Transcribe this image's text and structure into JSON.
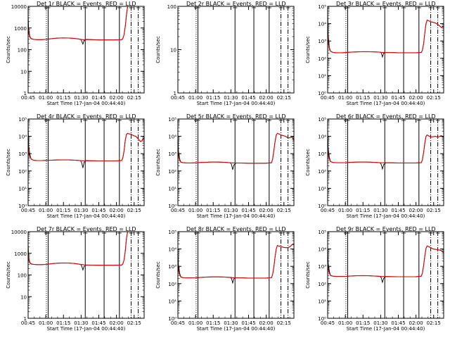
{
  "chart_data": {
    "type": "line",
    "layout": "3x3 grid of small multiples",
    "colors": {
      "events": "#000000",
      "lld": "#e00000",
      "axes": "#000000",
      "background": "#ffffff"
    },
    "xlabel": "Start Time (17-Jan-04 00:44:40)",
    "ylabel": "Counts/sec",
    "x_ticks": [
      "00:45",
      "01:00",
      "01:15",
      "01:30",
      "01:45",
      "02:00",
      "02:15"
    ],
    "x_range_minutes": [
      0.5,
      99
    ],
    "vertical_lines_minutes": [
      {
        "x": 16,
        "style": "dotted"
      },
      {
        "x": 17.5,
        "style": "solid"
      },
      {
        "x": 49,
        "style": "solid"
      },
      {
        "x": 65,
        "style": "solid"
      },
      {
        "x": 78,
        "style": "solid"
      },
      {
        "x": 88,
        "style": "dash-dot"
      },
      {
        "x": 94,
        "style": "dash-dot"
      }
    ],
    "time_minutes": [
      0.5,
      1,
      2,
      3,
      5,
      8,
      12,
      16,
      20,
      25,
      30,
      35,
      40,
      45,
      46,
      47,
      48,
      50,
      55,
      60,
      65,
      70,
      75,
      80,
      81,
      82,
      83,
      84,
      85,
      86,
      88,
      90,
      92,
      94,
      96,
      97,
      98,
      99
    ],
    "panels": [
      {
        "title": "Det 1r BLACK = Events, RED = LLD",
        "y_scale": "log",
        "ylim": [
          1,
          10000
        ],
        "y_ticks": [
          "1",
          "10",
          "100",
          "1000",
          "10000"
        ],
        "series": [
          {
            "name": "Events",
            "values": [
              4000,
              800,
              400,
              330,
              300,
              290,
              290,
              300,
              320,
              340,
              350,
              345,
              330,
              300,
              250,
              180,
              260,
              300,
              290,
              280,
              280,
              280,
              280,
              290,
              330,
              500,
              1200,
              4000,
              10000,
              10000,
              10000,
              10000,
              10000,
              10000,
              10000,
              10000,
              10000,
              10000
            ]
          },
          {
            "name": "LLD",
            "values": [
              1200,
              600,
              380,
              320,
              300,
              290,
              290,
              300,
              320,
              340,
              350,
              345,
              330,
              300,
              295,
              290,
              290,
              290,
              290,
              280,
              280,
              280,
              280,
              290,
              330,
              500,
              1200,
              4000,
              10000,
              10000,
              10000,
              10000,
              10000,
              10000,
              10000,
              10000,
              10000,
              10000
            ]
          }
        ]
      },
      {
        "title": "Det 2r BLACK = Events, RED = LLD",
        "y_scale": "log",
        "ylim": [
          1,
          100
        ],
        "y_ticks": [
          "1",
          "10",
          "100"
        ],
        "series": [
          {
            "name": "Events",
            "values": []
          },
          {
            "name": "LLD",
            "values": []
          }
        ]
      },
      {
        "title": "Det 3r BLACK = Events, RED = LLD",
        "y_scale": "log",
        "ylim": [
          1,
          100000
        ],
        "y_ticks": [
          "10⁰",
          "10¹",
          "10²",
          "10³",
          "10⁴",
          "10⁵"
        ],
        "series": [
          {
            "name": "Events",
            "values": [
              60000,
              2000,
              400,
              260,
              220,
              210,
              210,
              215,
              225,
              235,
              240,
              240,
              235,
              225,
              210,
              120,
              200,
              220,
              215,
              210,
              210,
              210,
              210,
              220,
              300,
              700,
              3000,
              10000,
              16000,
              15000,
              13000,
              12000,
              11000,
              9000,
              7000,
              6000,
              6500,
              7000
            ]
          },
          {
            "name": "LLD",
            "values": [
              2500,
              900,
              350,
              250,
              220,
              210,
              210,
              215,
              225,
              235,
              240,
              240,
              235,
              225,
              220,
              215,
              215,
              215,
              215,
              210,
              210,
              210,
              210,
              220,
              300,
              700,
              3000,
              10000,
              16000,
              15000,
              13000,
              12000,
              11000,
              9000,
              7000,
              6000,
              6500,
              7000
            ]
          }
        ]
      },
      {
        "title": "Det 4r BLACK = Events, RED = LLD",
        "y_scale": "log",
        "ylim": [
          1,
          100000
        ],
        "y_ticks": [
          "10⁰",
          "10¹",
          "10²",
          "10³",
          "10⁴",
          "10⁵"
        ],
        "series": [
          {
            "name": "Events",
            "values": [
              50000,
              3000,
              900,
              500,
              420,
              400,
              400,
              410,
              420,
              430,
              440,
              435,
              420,
              400,
              300,
              150,
              320,
              400,
              390,
              380,
              380,
              380,
              380,
              400,
              600,
              1500,
              6000,
              13000,
              15000,
              14000,
              13000,
              11000,
              10000,
              7000,
              5000,
              5500,
              7000,
              8000
            ]
          },
          {
            "name": "LLD",
            "values": [
              3000,
              1200,
              700,
              480,
              420,
              400,
              400,
              410,
              420,
              430,
              440,
              435,
              420,
              400,
              395,
              390,
              390,
              390,
              390,
              380,
              380,
              380,
              380,
              400,
              600,
              1500,
              6000,
              13000,
              15000,
              14000,
              13000,
              11000,
              10000,
              7000,
              5000,
              5500,
              7000,
              8000
            ]
          }
        ]
      },
      {
        "title": "Det 5r BLACK = Events, RED = LLD",
        "y_scale": "log",
        "ylim": [
          1,
          100000
        ],
        "y_ticks": [
          "10⁰",
          "10¹",
          "10²",
          "10³",
          "10⁴",
          "10⁵"
        ],
        "series": [
          {
            "name": "Events",
            "values": [
              20000,
              1500,
              500,
              330,
              300,
              290,
              290,
              300,
              310,
              320,
              330,
              325,
              315,
              300,
              240,
              120,
              220,
              290,
              285,
              280,
              280,
              280,
              280,
              300,
              500,
              1500,
              5000,
              12000,
              15000,
              14000,
              12000,
              11000,
              10000,
              8000,
              8500,
              9000,
              8000,
              6000
            ]
          },
          {
            "name": "LLD",
            "values": [
              1500,
              800,
              420,
              320,
              300,
              290,
              290,
              300,
              310,
              320,
              330,
              325,
              315,
              300,
              295,
              290,
              290,
              290,
              285,
              280,
              280,
              280,
              280,
              300,
              500,
              1500,
              5000,
              12000,
              15000,
              14000,
              12000,
              11000,
              10000,
              8000,
              8500,
              9000,
              8000,
              6000
            ]
          }
        ]
      },
      {
        "title": "Det 6r BLACK = Events, RED = LLD",
        "y_scale": "log",
        "ylim": [
          1,
          100000
        ],
        "y_ticks": [
          "10⁰",
          "10¹",
          "10²",
          "10³",
          "10⁴",
          "10⁵"
        ],
        "series": [
          {
            "name": "Events",
            "values": [
              30000,
              2000,
              600,
              350,
              310,
              300,
              300,
              305,
              315,
              325,
              330,
              325,
              315,
              300,
              240,
              130,
              230,
              300,
              295,
              290,
              290,
              290,
              290,
              300,
              450,
              1200,
              4000,
              10000,
              12000,
              11000,
              9000,
              9500,
              10000,
              9000,
              10000,
              11000,
              10000,
              9000
            ]
          },
          {
            "name": "LLD",
            "values": [
              2000,
              900,
              480,
              340,
              310,
              300,
              300,
              305,
              315,
              325,
              330,
              325,
              315,
              300,
              300,
              295,
              295,
              295,
              295,
              290,
              290,
              290,
              290,
              300,
              450,
              1200,
              4000,
              10000,
              12000,
              11000,
              9000,
              9500,
              10000,
              9000,
              10000,
              11000,
              10000,
              9000
            ]
          }
        ]
      },
      {
        "title": "Det 7r BLACK = Events, RED = LLD",
        "y_scale": "log",
        "ylim": [
          1,
          10000
        ],
        "y_ticks": [
          "1",
          "10",
          "100",
          "1000",
          "10000"
        ],
        "series": [
          {
            "name": "Events",
            "values": [
              3000,
              600,
              380,
              330,
              310,
              300,
              300,
              310,
              330,
              350,
              360,
              355,
              340,
              310,
              260,
              170,
              250,
              290,
              285,
              280,
              280,
              280,
              280,
              290,
              330,
              500,
              1300,
              5000,
              10000,
              10000,
              10000,
              10000,
              10000,
              10000,
              10000,
              10000,
              10000,
              10000
            ]
          },
          {
            "name": "LLD",
            "values": [
              1000,
              500,
              360,
              320,
              310,
              300,
              300,
              310,
              330,
              350,
              360,
              355,
              340,
              310,
              305,
              300,
              295,
              290,
              285,
              280,
              280,
              280,
              280,
              290,
              330,
              500,
              1300,
              5000,
              10000,
              10000,
              10000,
              10000,
              10000,
              10000,
              10000,
              10000,
              10000,
              10000
            ]
          }
        ]
      },
      {
        "title": "Det 8r BLACK = Events, RED = LLD",
        "y_scale": "log",
        "ylim": [
          1,
          100000
        ],
        "y_ticks": [
          "10⁰",
          "10¹",
          "10²",
          "10³",
          "10⁴",
          "10⁵"
        ],
        "series": [
          {
            "name": "Events",
            "values": [
              15000,
              1200,
              400,
              250,
              220,
              215,
              215,
              220,
              230,
              240,
              245,
              245,
              240,
              230,
              200,
              110,
              190,
              220,
              215,
              210,
              210,
              210,
              210,
              220,
              350,
              900,
              3500,
              10000,
              16000,
              15000,
              14000,
              12500,
              12000,
              12000,
              14000,
              17000,
              18000,
              18000
            ]
          },
          {
            "name": "LLD",
            "values": [
              1200,
              600,
              320,
              240,
              220,
              215,
              215,
              220,
              230,
              240,
              245,
              245,
              240,
              230,
              225,
              220,
              220,
              220,
              215,
              210,
              210,
              210,
              210,
              220,
              350,
              900,
              3500,
              10000,
              16000,
              15000,
              14000,
              12500,
              12000,
              12000,
              14000,
              17000,
              18000,
              18000
            ]
          }
        ]
      },
      {
        "title": "Det 9r BLACK = Events, RED = LLD",
        "y_scale": "log",
        "ylim": [
          1,
          100000
        ],
        "y_ticks": [
          "10⁰",
          "10¹",
          "10²",
          "10³",
          "10⁴",
          "10⁵"
        ],
        "series": [
          {
            "name": "Events",
            "values": [
              20000,
              1500,
              500,
              300,
              270,
              260,
              260,
              265,
              275,
              285,
              290,
              285,
              275,
              265,
              220,
              120,
              200,
              260,
              255,
              250,
              250,
              250,
              250,
              270,
              420,
              1100,
              4000,
              11000,
              15000,
              14000,
              12000,
              10000,
              9500,
              9000,
              8500,
              8000,
              7000,
              6500
            ]
          },
          {
            "name": "LLD",
            "values": [
              1500,
              700,
              400,
              290,
              270,
              260,
              260,
              265,
              275,
              285,
              290,
              285,
              275,
              265,
              260,
              258,
              256,
              255,
              252,
              250,
              250,
              250,
              250,
              270,
              420,
              1100,
              4000,
              11000,
              15000,
              14000,
              12000,
              10000,
              9500,
              9000,
              8500,
              8000,
              7000,
              6500
            ]
          }
        ]
      }
    ]
  }
}
